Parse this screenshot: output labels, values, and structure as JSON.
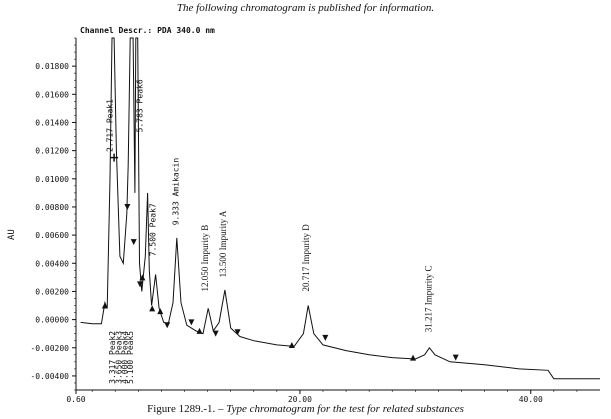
{
  "header": "The following chromatogram is published for information.",
  "caption": {
    "prefix": "Figure 1289.-1. – ",
    "text": "Type chromatogram for the test for related substances"
  },
  "channel_label": "Channel Descr.:  PDA 340.0 nm",
  "chart_data": {
    "type": "line",
    "title": "",
    "xlabel": "",
    "ylabel": "AU",
    "xlim": [
      0.6,
      46
    ],
    "ylim": [
      -0.005,
      0.02
    ],
    "x_tick_labels": [
      "0.60",
      "20.00",
      "40.00"
    ],
    "x_tick_values": [
      0.6,
      20,
      40
    ],
    "y_tick_labels": [
      "0.01800",
      "0.01600",
      "0.01400",
      "0.01200",
      "0.01000",
      "0.00800",
      "0.00600",
      "0.00400",
      "0.00200",
      "0.00000",
      "-0.00200",
      "-0.00400"
    ],
    "y_tick_values": [
      0.018,
      0.016,
      0.014,
      0.012,
      0.01,
      0.008,
      0.006,
      0.004,
      0.002,
      0.0,
      -0.002,
      -0.004
    ],
    "trace": [
      [
        1.0,
        -0.0002
      ],
      [
        2.0,
        -0.0003
      ],
      [
        2.8,
        -0.0003
      ],
      [
        3.1,
        0.0012
      ],
      [
        3.3,
        0.0008
      ],
      [
        3.55,
        0.01
      ],
      [
        3.72,
        0.02
      ],
      [
        3.9,
        0.02
      ],
      [
        4.1,
        0.012
      ],
      [
        4.4,
        0.0045
      ],
      [
        4.7,
        0.004
      ],
      [
        5.0,
        0.0075
      ],
      [
        5.12,
        0.011
      ],
      [
        5.3,
        0.02
      ],
      [
        5.55,
        0.02
      ],
      [
        5.7,
        0.009
      ],
      [
        5.78,
        0.02
      ],
      [
        5.95,
        0.02
      ],
      [
        6.1,
        0.004
      ],
      [
        6.3,
        0.002
      ],
      [
        6.6,
        0.0045
      ],
      [
        6.8,
        0.009
      ],
      [
        6.95,
        0.0035
      ],
      [
        7.15,
        0.001
      ],
      [
        7.5,
        0.0032
      ],
      [
        7.8,
        0.0008
      ],
      [
        8.2,
        -0.0002
      ],
      [
        8.6,
        -0.0003
      ],
      [
        9.0,
        0.0012
      ],
      [
        9.333,
        0.0058
      ],
      [
        9.7,
        0.0012
      ],
      [
        10.2,
        -0.0004
      ],
      [
        11.0,
        -0.0008
      ],
      [
        11.6,
        -0.001
      ],
      [
        12.05,
        0.0008
      ],
      [
        12.5,
        -0.0008
      ],
      [
        13.0,
        -0.0002
      ],
      [
        13.5,
        0.0021
      ],
      [
        14.0,
        -0.0006
      ],
      [
        14.8,
        -0.0012
      ],
      [
        16.0,
        -0.0015
      ],
      [
        18.0,
        -0.0018
      ],
      [
        19.5,
        -0.0019
      ],
      [
        20.3,
        -0.001
      ],
      [
        20.717,
        0.001
      ],
      [
        21.2,
        -0.001
      ],
      [
        22.0,
        -0.0018
      ],
      [
        24.0,
        -0.0022
      ],
      [
        26.0,
        -0.0025
      ],
      [
        28.0,
        -0.0027
      ],
      [
        30.0,
        -0.0028
      ],
      [
        30.8,
        -0.0025
      ],
      [
        31.217,
        -0.002
      ],
      [
        31.7,
        -0.0025
      ],
      [
        33.0,
        -0.003
      ],
      [
        36.0,
        -0.0032
      ],
      [
        39.0,
        -0.0035
      ],
      [
        41.5,
        -0.0036
      ],
      [
        42.0,
        -0.0042
      ],
      [
        44.0,
        -0.0042
      ],
      [
        46.0,
        -0.0042
      ]
    ],
    "markers": [
      {
        "x": 3.1,
        "y": 0.001,
        "dir": "up"
      },
      {
        "x": 5.05,
        "y": 0.008,
        "dir": "down"
      },
      {
        "x": 5.6,
        "y": 0.0055,
        "dir": "down"
      },
      {
        "x": 6.15,
        "y": 0.0025,
        "dir": "down"
      },
      {
        "x": 6.35,
        "y": 0.003,
        "dir": "up"
      },
      {
        "x": 7.2,
        "y": 0.0008,
        "dir": "up"
      },
      {
        "x": 7.9,
        "y": 0.0006,
        "dir": "up"
      },
      {
        "x": 8.5,
        "y": -0.0004,
        "dir": "down"
      },
      {
        "x": 10.6,
        "y": -0.0002,
        "dir": "down"
      },
      {
        "x": 11.3,
        "y": -0.0008,
        "dir": "up"
      },
      {
        "x": 12.7,
        "y": -0.001,
        "dir": "down"
      },
      {
        "x": 14.6,
        "y": -0.0009,
        "dir": "down"
      },
      {
        "x": 19.3,
        "y": -0.0018,
        "dir": "up"
      },
      {
        "x": 22.2,
        "y": -0.0013,
        "dir": "down"
      },
      {
        "x": 29.8,
        "y": -0.0027,
        "dir": "up"
      },
      {
        "x": 33.5,
        "y": -0.0027,
        "dir": "down"
      }
    ],
    "cross_marker": {
      "x": 3.9,
      "y": 0.0115
    },
    "peak_labels": [
      {
        "text": "2.717 Peak1",
        "x": 3.75,
        "y": 0.0119,
        "font": "mono"
      },
      {
        "text": "5.783 Peak6",
        "x": 6.35,
        "y": 0.0133,
        "font": "mono"
      },
      {
        "text": "7.500 Peak7",
        "x": 7.5,
        "y": 0.0045,
        "font": "mono"
      },
      {
        "text": "9.333 Amikacin",
        "x": 9.5,
        "y": 0.0067,
        "font": "mono"
      },
      {
        "text": "12.050  Impurity B",
        "x": 12.05,
        "y": 0.002,
        "font": "serif"
      },
      {
        "text": "13.500  Impurity A",
        "x": 13.6,
        "y": 0.003,
        "font": "serif"
      },
      {
        "text": "20.717  Impurity D",
        "x": 20.8,
        "y": 0.002,
        "font": "serif"
      },
      {
        "text": "31.217  Impurity C",
        "x": 31.4,
        "y": -0.0009,
        "font": "serif"
      }
    ],
    "peak_labels_down": [
      {
        "text": "3.317 Peak2",
        "x": 4.0,
        "y": -0.0008
      },
      {
        "text": "3.650 Peak3",
        "x": 4.55,
        "y": -0.0008
      },
      {
        "text": "4.000 Peak4",
        "x": 5.05,
        "y": -0.0008
      },
      {
        "text": "5.100 Peak5",
        "x": 5.55,
        "y": -0.0008
      }
    ]
  }
}
